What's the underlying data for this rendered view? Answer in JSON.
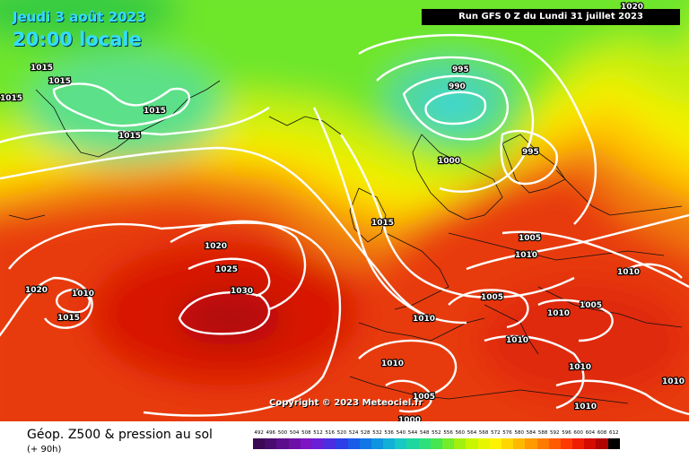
{
  "header": {
    "date": "Jeudi 3 août 2023",
    "time": "20:00 locale",
    "run": "Run GFS 0 Z du Lundi 31 juillet 2023"
  },
  "copyright": "Copyright © 2023 Meteociel.fr",
  "footer": {
    "title": "Géop. Z500 & pression au sol",
    "subtitle": "(+ 90h)"
  },
  "isobar_labels": [
    "1015",
    "1015",
    "1015",
    "1015",
    "1015",
    "1020",
    "1025",
    "1030",
    "1020",
    "1010",
    "1015",
    "1015",
    "995",
    "990",
    "1000",
    "995",
    "1005",
    "1010",
    "1005",
    "1010",
    "1010",
    "1005",
    "1010",
    "1010",
    "1010",
    "1010",
    "1005",
    "1000",
    "1010",
    "1010",
    "1020"
  ],
  "legend": {
    "labels": [
      "492",
      "496",
      "500",
      "504",
      "508",
      "512",
      "516",
      "520",
      "524",
      "528",
      "532",
      "536",
      "540",
      "544",
      "548",
      "552",
      "556",
      "560",
      "564",
      "568",
      "572",
      "576",
      "580",
      "584",
      "588",
      "592",
      "596",
      "600",
      "604",
      "608",
      "612"
    ],
    "colors": [
      "#3b0a52",
      "#4a0b6e",
      "#5c0d8c",
      "#6d10a8",
      "#7d15c4",
      "#6a1fd6",
      "#4b2ee0",
      "#2d3fe6",
      "#1a5be8",
      "#1177e6",
      "#0f94e0",
      "#12b0d6",
      "#17c9c4",
      "#1ed6a0",
      "#2ee07a",
      "#46e650",
      "#73ec2c",
      "#a2f010",
      "#c8f500",
      "#e8f500",
      "#fff200",
      "#ffd600",
      "#ffb800",
      "#ff9a00",
      "#ff7a00",
      "#ff5a00",
      "#ff3a00",
      "#f01e00",
      "#d40c00",
      "#b00400",
      "#000000"
    ]
  }
}
